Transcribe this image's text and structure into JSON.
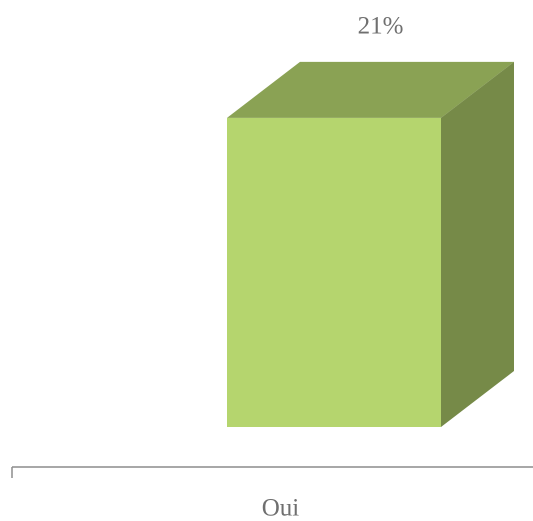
{
  "chart_data": {
    "type": "bar3d",
    "categories": [
      "Oui"
    ],
    "values": [
      21
    ],
    "value_labels": [
      "21%"
    ],
    "color": "#b5d56e",
    "ylim": [
      0,
      25
    ]
  }
}
